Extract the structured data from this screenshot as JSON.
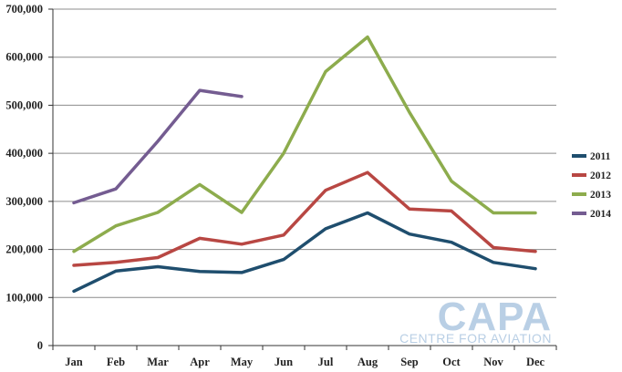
{
  "chart_data": {
    "type": "line",
    "categories": [
      "Jan",
      "Feb",
      "Mar",
      "Apr",
      "May",
      "Jun",
      "Jul",
      "Aug",
      "Sep",
      "Oct",
      "Nov",
      "Dec"
    ],
    "ylim": [
      0,
      700000
    ],
    "yticks": [
      "0",
      "100,000",
      "200,000",
      "300,000",
      "400,000",
      "500,000",
      "600,000",
      "700,000"
    ],
    "grid": true,
    "legend_position": "right",
    "series": [
      {
        "name": "2011",
        "color": "#1f4e6e",
        "values": [
          113000,
          155000,
          164000,
          154000,
          152000,
          179000,
          243000,
          276000,
          232000,
          215000,
          173000,
          160000
        ]
      },
      {
        "name": "2012",
        "color": "#b84743",
        "values": [
          167000,
          173000,
          183000,
          223000,
          211000,
          230000,
          323000,
          360000,
          284000,
          280000,
          204000,
          196000
        ]
      },
      {
        "name": "2013",
        "color": "#8dac4d",
        "values": [
          196000,
          249000,
          277000,
          335000,
          277000,
          400000,
          570000,
          642000,
          485000,
          342000,
          276000,
          276000
        ]
      },
      {
        "name": "2014",
        "color": "#745c91",
        "values": [
          297000,
          326000,
          425000,
          531000,
          518000,
          null,
          null,
          null,
          null,
          null,
          null,
          null
        ]
      }
    ]
  },
  "watermark": {
    "logo": "CAPA",
    "tagline": "CENTRE FOR AVIATION"
  }
}
